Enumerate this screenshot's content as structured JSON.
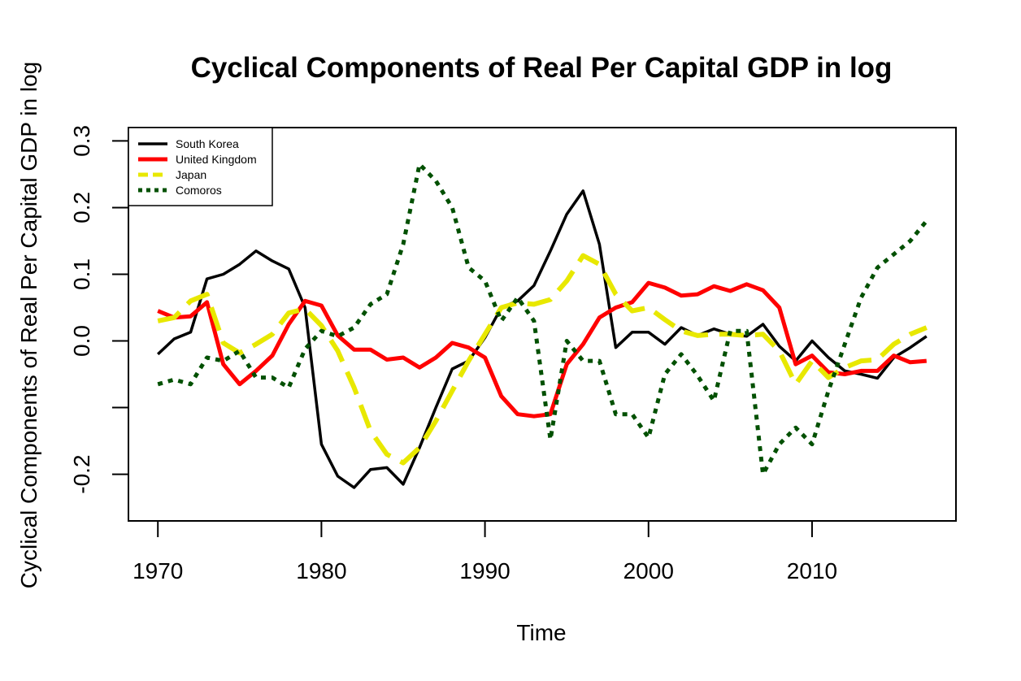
{
  "chart_data": {
    "type": "line",
    "title": "Cyclical Components of Real Per Capital GDP in log",
    "xlabel": "Time",
    "ylabel": "Cyclical Components of Real Per Capital GDP in log",
    "xlim": [
      1968.2,
      2018.8
    ],
    "ylim": [
      -0.27,
      0.32
    ],
    "x_ticks": [
      1970,
      1980,
      1990,
      2000,
      2010
    ],
    "y_ticks": [
      -0.2,
      -0.1,
      0.0,
      0.1,
      0.2,
      0.3
    ],
    "y_tick_labels": [
      "-0.2",
      "",
      "0.0",
      "0.1",
      "0.2",
      "0.3"
    ],
    "grid": false,
    "legend_position": "top-left",
    "x": [
      1970,
      1971,
      1972,
      1973,
      1974,
      1975,
      1976,
      1977,
      1978,
      1979,
      1980,
      1981,
      1982,
      1983,
      1984,
      1985,
      1986,
      1987,
      1988,
      1989,
      1990,
      1991,
      1992,
      1993,
      1994,
      1995,
      1996,
      1997,
      1998,
      1999,
      2000,
      2001,
      2002,
      2003,
      2004,
      2005,
      2006,
      2007,
      2008,
      2009,
      2010,
      2011,
      2012,
      2013,
      2014,
      2015,
      2016,
      2017
    ],
    "series": [
      {
        "name": "South Korea",
        "color": "#000000",
        "dash": "solid",
        "width": 3.5,
        "values": [
          -0.02,
          0.003,
          0.013,
          0.093,
          0.1,
          0.115,
          0.135,
          0.12,
          0.108,
          0.05,
          -0.155,
          -0.203,
          -0.22,
          -0.193,
          -0.19,
          -0.215,
          -0.16,
          -0.1,
          -0.042,
          -0.03,
          0.005,
          0.05,
          0.06,
          0.083,
          0.135,
          0.19,
          0.225,
          0.145,
          -0.01,
          0.013,
          0.013,
          -0.005,
          0.02,
          0.008,
          0.018,
          0.01,
          0.007,
          0.025,
          -0.008,
          -0.03,
          0.0,
          -0.025,
          -0.045,
          -0.05,
          -0.056,
          -0.025,
          -0.01,
          0.007
        ]
      },
      {
        "name": "United Kingdom",
        "color": "#ff0000",
        "dash": "solid",
        "width": 5,
        "values": [
          0.045,
          0.035,
          0.037,
          0.058,
          -0.035,
          -0.065,
          -0.045,
          -0.022,
          0.025,
          0.06,
          0.053,
          0.008,
          -0.013,
          -0.013,
          -0.028,
          -0.025,
          -0.04,
          -0.025,
          -0.003,
          -0.01,
          -0.025,
          -0.083,
          -0.11,
          -0.113,
          -0.11,
          -0.035,
          -0.005,
          0.035,
          0.05,
          0.058,
          0.087,
          0.08,
          0.068,
          0.07,
          0.082,
          0.075,
          0.085,
          0.076,
          0.05,
          -0.035,
          -0.022,
          -0.047,
          -0.05,
          -0.045,
          -0.045,
          -0.022,
          -0.032,
          -0.03
        ]
      },
      {
        "name": "Japan",
        "color": "#e8e800",
        "dash": "long-dash",
        "width": 6,
        "values": [
          0.03,
          0.035,
          0.06,
          0.07,
          -0.003,
          -0.018,
          -0.005,
          0.01,
          0.042,
          0.048,
          0.023,
          -0.015,
          -0.07,
          -0.135,
          -0.17,
          -0.183,
          -0.16,
          -0.12,
          -0.075,
          -0.03,
          0.01,
          0.05,
          0.057,
          0.055,
          0.062,
          0.09,
          0.128,
          0.115,
          0.07,
          0.045,
          0.05,
          0.032,
          0.015,
          0.008,
          0.01,
          0.01,
          0.008,
          0.01,
          -0.015,
          -0.065,
          -0.03,
          -0.055,
          -0.04,
          -0.03,
          -0.028,
          -0.005,
          0.01,
          0.02
        ]
      },
      {
        "name": "Comoros",
        "color": "#005000",
        "dash": "dotted",
        "width": 5,
        "values": [
          -0.065,
          -0.058,
          -0.065,
          -0.025,
          -0.03,
          -0.015,
          -0.055,
          -0.055,
          -0.07,
          -0.012,
          0.015,
          0.007,
          0.02,
          0.055,
          0.07,
          0.145,
          0.265,
          0.24,
          0.2,
          0.11,
          0.09,
          0.03,
          0.065,
          0.03,
          -0.148,
          0.0,
          -0.03,
          -0.03,
          -0.11,
          -0.11,
          -0.145,
          -0.05,
          -0.02,
          -0.052,
          -0.09,
          0.015,
          0.015,
          -0.2,
          -0.155,
          -0.13,
          -0.155,
          -0.075,
          -0.005,
          0.065,
          0.11,
          0.13,
          0.15,
          0.18
        ]
      }
    ]
  }
}
